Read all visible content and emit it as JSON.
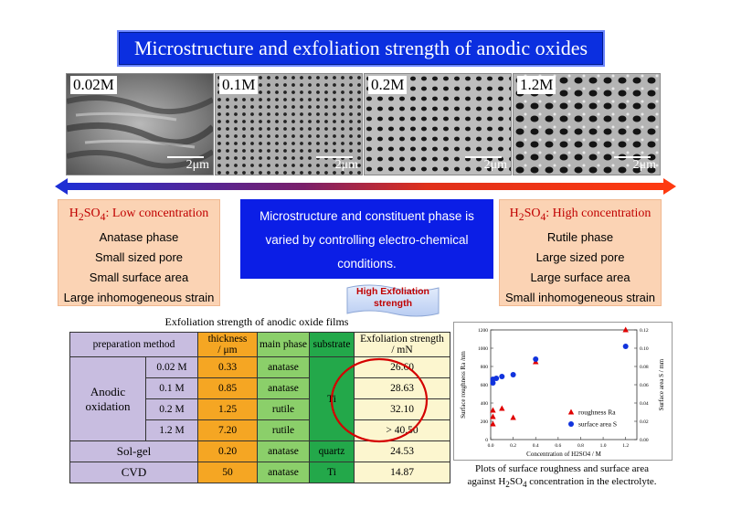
{
  "title": "Microstructure and exfoliation strength of anodic oxides",
  "sem_images": [
    {
      "label": "0.02M",
      "scale": "2μm"
    },
    {
      "label": "0.1M",
      "scale": "2μm"
    },
    {
      "label": "0.2M",
      "scale": "2μm"
    },
    {
      "label": "1.2M",
      "scale": "2μm"
    }
  ],
  "left_box": {
    "heading_pre": "H",
    "heading_sub1": "2",
    "heading_mid": "SO",
    "heading_sub2": "4",
    "heading_post": ": Low concentration",
    "lines": [
      "Anatase phase",
      "Small sized pore",
      "Small surface area",
      "Large inhomogeneous strain"
    ]
  },
  "right_box": {
    "heading_pre": "H",
    "heading_sub1": "2",
    "heading_mid": "SO",
    "heading_sub2": "4",
    "heading_post": ": High concentration",
    "lines": [
      "Rutile phase",
      "Large sized pore",
      "Large surface area",
      "Small inhomogeneous strain"
    ]
  },
  "center_box": {
    "lines": [
      "Microstructure and constituent phase is",
      "varied by controlling electro-chemical",
      "conditions."
    ]
  },
  "flag": {
    "line1": "High Exfoliation",
    "line2": "strength"
  },
  "table": {
    "caption": "Exfoliation strength of anodic oxide films",
    "headers": {
      "prep": "preparation method",
      "thickness_1": "thickness",
      "thickness_2": "/ μm",
      "phase": "main phase",
      "substrate": "substrate",
      "strength_1": "Exfoliation strength",
      "strength_2": "/ mN"
    },
    "anodic_label_1": "Anodic",
    "anodic_label_2": "oxidation",
    "anodic_substrate": "Ti",
    "anodic_rows": [
      {
        "conc": "0.02 M",
        "thickness": "0.33",
        "phase": "anatase",
        "strength": "26.60"
      },
      {
        "conc": "0.1 M",
        "thickness": "0.85",
        "phase": "anatase",
        "strength": "28.63"
      },
      {
        "conc": "0.2 M",
        "thickness": "1.25",
        "phase": "rutile",
        "strength": "32.10"
      },
      {
        "conc": "1.2 M",
        "thickness": "7.20",
        "phase": "rutile",
        "strength": "> 40.50"
      }
    ],
    "other_rows": [
      {
        "method": "Sol-gel",
        "thickness": "0.20",
        "phase": "anatase",
        "substrate": "quartz",
        "strength": "24.53"
      },
      {
        "method": "CVD",
        "thickness": "50",
        "phase": "anatase",
        "substrate": "Ti",
        "strength": "14.87"
      }
    ]
  },
  "chart_data": {
    "type": "scatter",
    "xlabel": "Concentration of H2SO4 / M",
    "ylabel_left": "Surface roughness Ra /nm",
    "ylabel_right": "Surface area S / mm",
    "xlim": [
      0,
      1.3
    ],
    "ylim_left": [
      0,
      1200
    ],
    "ylim_right": [
      0,
      0.12
    ],
    "x_ticks": [
      "0.0",
      "0.2",
      "0.4",
      "0.6",
      "0.8",
      "1.0",
      "1.2"
    ],
    "y_ticks_left": [
      "0",
      "200",
      "400",
      "600",
      "800",
      "1000",
      "1200"
    ],
    "y_ticks_right": [
      "0.00",
      "0.02",
      "0.04",
      "0.06",
      "0.08",
      "0.10",
      "0.12"
    ],
    "series": [
      {
        "name": "roughness Ra",
        "color": "#e00000",
        "marker": "triangle",
        "x": [
          0.02,
          0.02,
          0.02,
          0.1,
          0.2,
          0.4,
          1.2
        ],
        "y": [
          170,
          250,
          320,
          340,
          240,
          850,
          1200
        ]
      },
      {
        "name": "surface area S",
        "color": "#1133dd",
        "marker": "circle",
        "x": [
          0.02,
          0.02,
          0.05,
          0.1,
          0.2,
          0.4,
          1.2
        ],
        "y": [
          0.062,
          0.066,
          0.067,
          0.069,
          0.071,
          0.088,
          0.102
        ]
      }
    ]
  },
  "plot_caption": {
    "line1": "Plots of surface roughness and surface area",
    "line2_pre": "against H",
    "line2_sub1": "2",
    "line2_mid": "SO",
    "line2_sub2": "4",
    "line2_post": " concentration in the electrolyte."
  },
  "colors": {
    "title_bg": "#0b2fe0",
    "side_bg": "#fbd3b4",
    "center_bg": "#0b1ee6",
    "accent_red": "#c00000"
  }
}
